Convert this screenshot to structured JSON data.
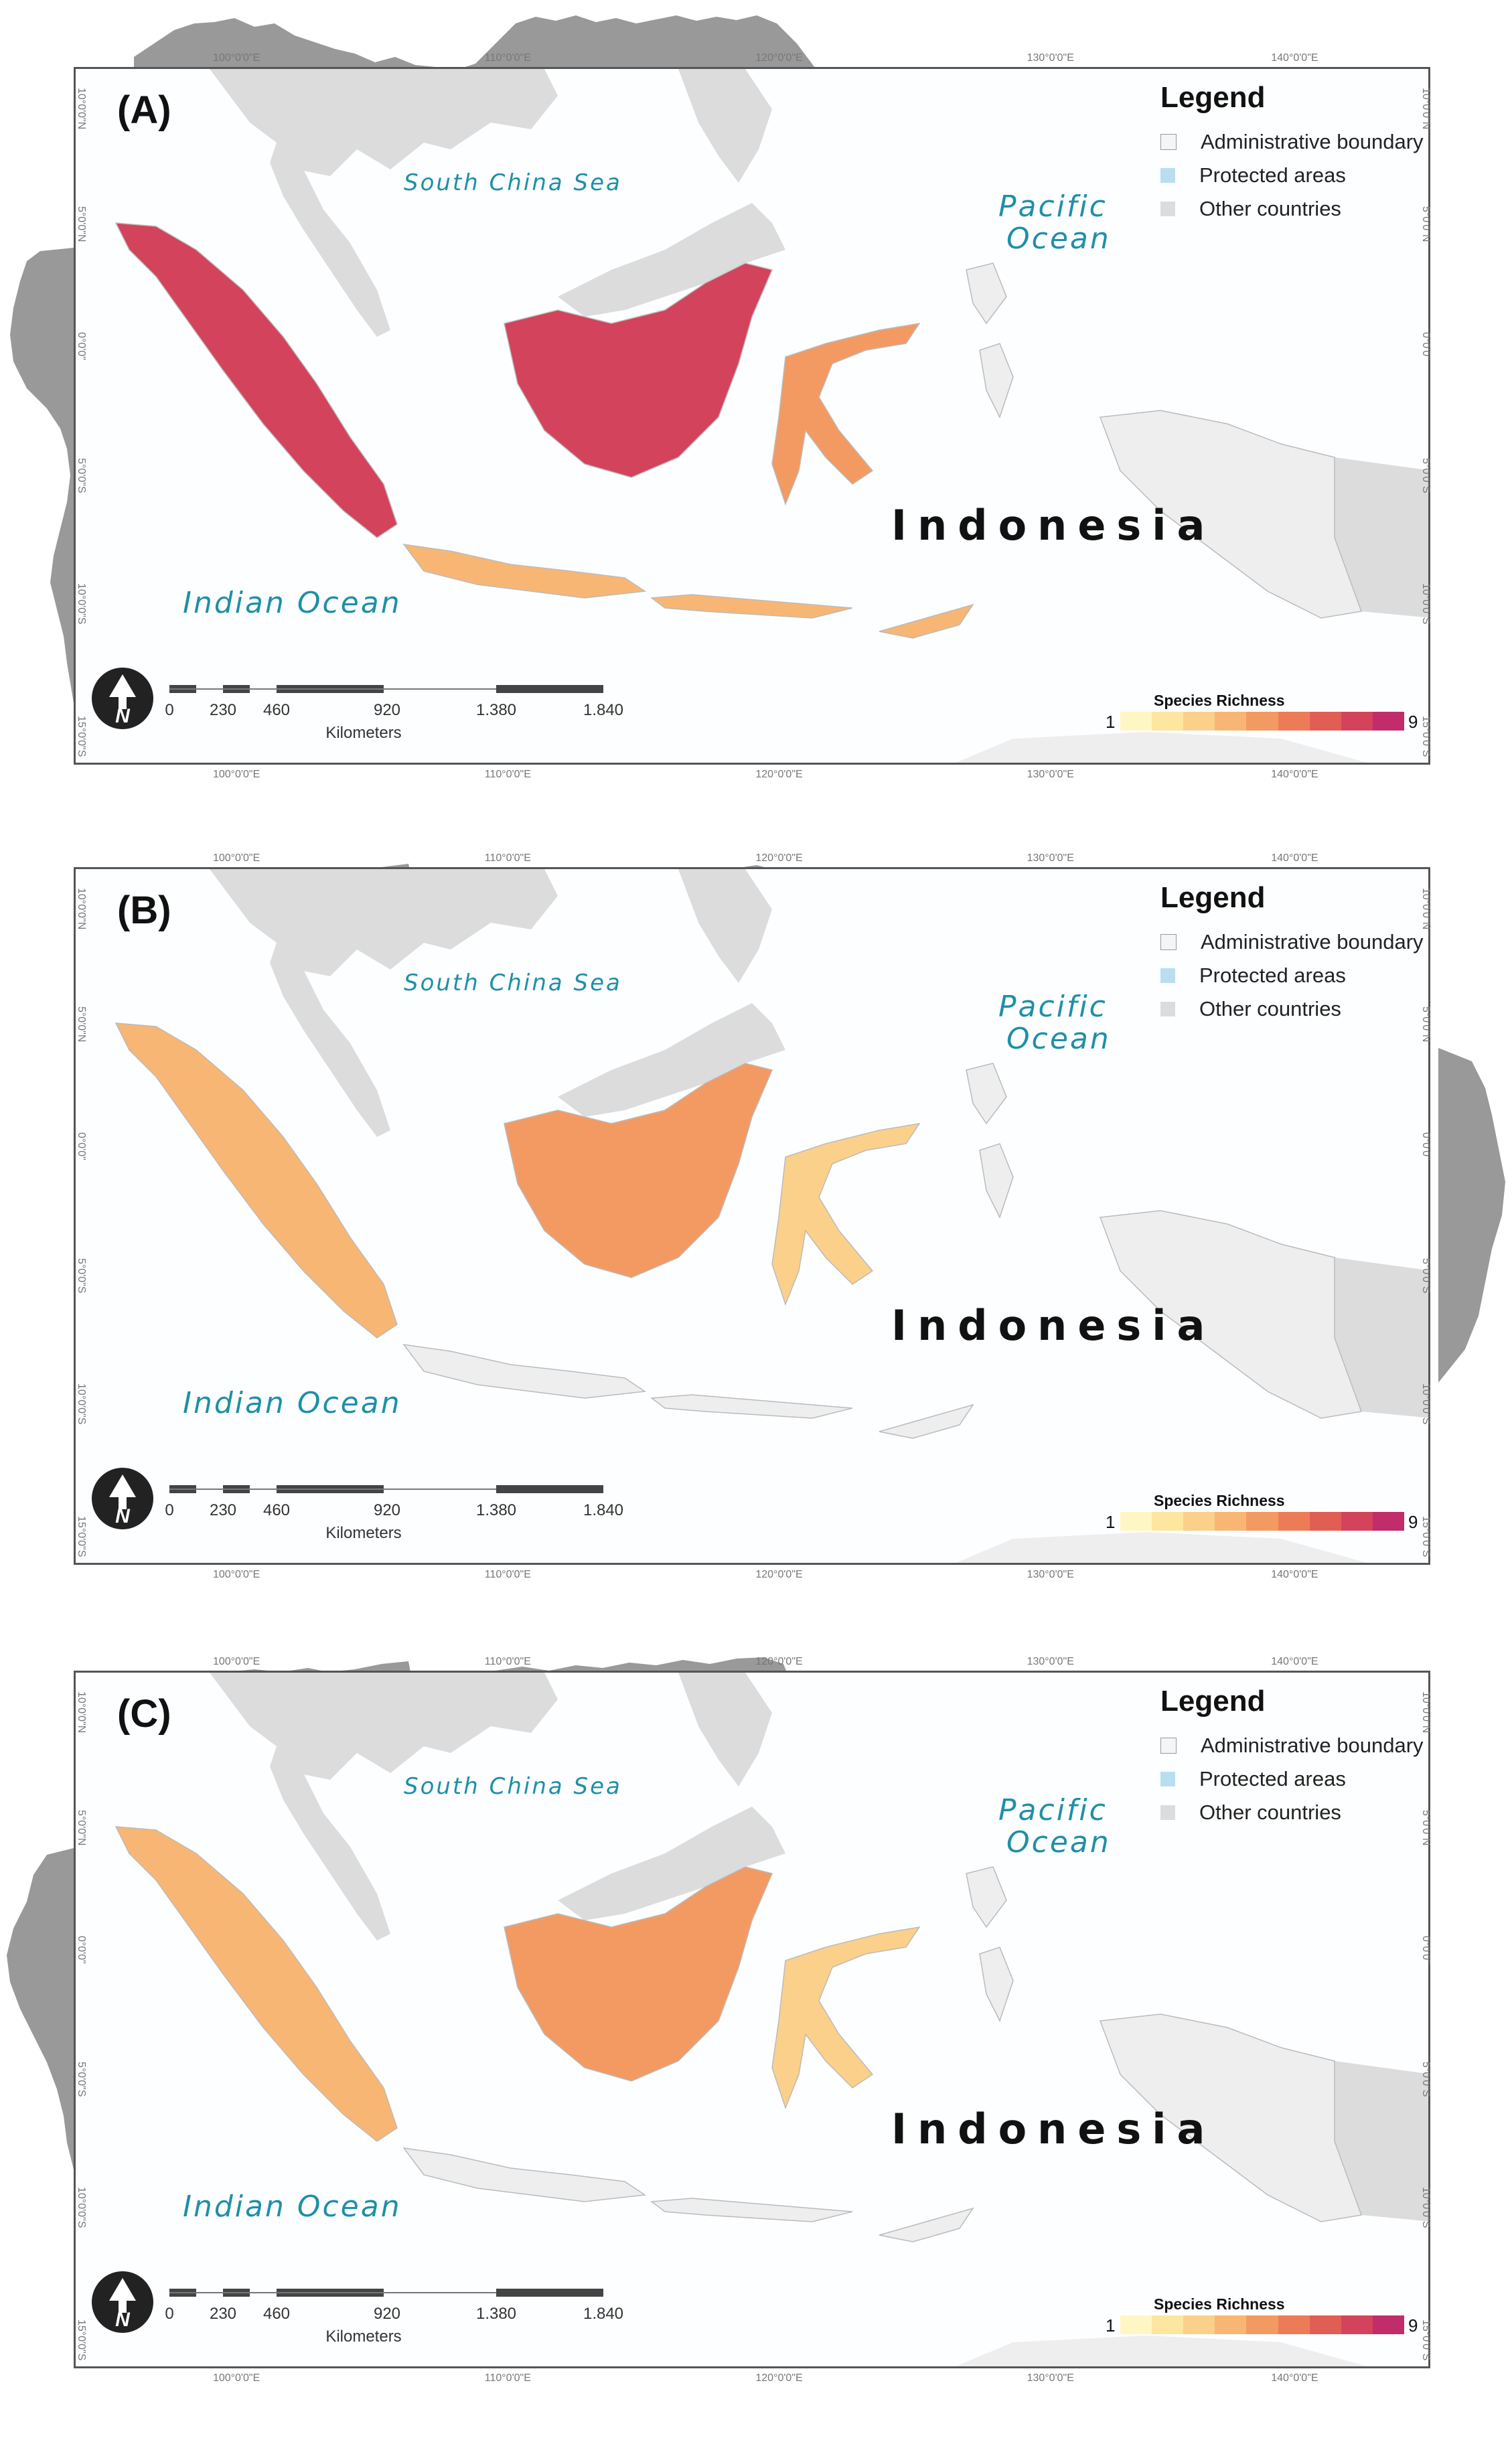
{
  "panels": [
    {
      "label": "(A)",
      "legend": {
        "title": "Legend",
        "items": [
          "Administrative boundary",
          "Protected areas",
          "Other countries"
        ]
      },
      "sea_labels": {
        "scs": "South China Sea",
        "pacific_1": "Pacific",
        "pacific_2": "Ocean",
        "indian": "Indian Ocean"
      },
      "country_label": "Indonesia",
      "scale": {
        "ticks": [
          "0",
          "230",
          "460",
          "920",
          "1.380",
          "1.840"
        ],
        "unit": "Kilometers"
      },
      "richness": {
        "title": "Species Richness",
        "min": "1",
        "max": "9"
      },
      "lon_ticks": [
        "100°0'0\"E",
        "110°0'0\"E",
        "120°0'0\"E",
        "130°0'0\"E",
        "140°0'0\"E"
      ],
      "lat_ticks": [
        "10°0'0\"N",
        "5°0'0\"N",
        "0°0'0\"",
        "5°0'0\"S",
        "10°0'0\"S",
        "15°0'0\"S"
      ],
      "richness_levels": {
        "sumatra": 7,
        "borneo": 7,
        "sulawesi": 4,
        "java": 3,
        "papua": 0
      }
    },
    {
      "label": "(B)",
      "legend": {
        "title": "Legend",
        "items": [
          "Administrative boundary",
          "Protected areas",
          "Other countries"
        ]
      },
      "sea_labels": {
        "scs": "South China Sea",
        "pacific_1": "Pacific",
        "pacific_2": "Ocean",
        "indian": "Indian Ocean"
      },
      "country_label": "Indonesia",
      "scale": {
        "ticks": [
          "0",
          "230",
          "460",
          "920",
          "1.380",
          "1.840"
        ],
        "unit": "Kilometers"
      },
      "richness": {
        "title": "Species Richness",
        "min": "1",
        "max": "9"
      },
      "lon_ticks": [
        "100°0'0\"E",
        "110°0'0\"E",
        "120°0'0\"E",
        "130°0'0\"E",
        "140°0'0\"E"
      ],
      "lat_ticks": [
        "10°0'0\"N",
        "5°0'0\"N",
        "0°0'0\"",
        "5°0'0\"S",
        "10°0'0\"S",
        "15°0'0\"S"
      ],
      "richness_levels": {
        "sumatra": 3,
        "borneo": 4,
        "sulawesi": 2,
        "java": 0,
        "papua": 0
      }
    },
    {
      "label": "(C)",
      "legend": {
        "title": "Legend",
        "items": [
          "Administrative boundary",
          "Protected areas",
          "Other countries"
        ]
      },
      "sea_labels": {
        "scs": "South China Sea",
        "pacific_1": "Pacific",
        "pacific_2": "Ocean",
        "indian": "Indian Ocean"
      },
      "country_label": "Indonesia",
      "scale": {
        "ticks": [
          "0",
          "230",
          "460",
          "920",
          "1.380",
          "1.840"
        ],
        "unit": "Kilometers"
      },
      "richness": {
        "title": "Species Richness",
        "min": "1",
        "max": "9"
      },
      "lon_ticks": [
        "100°0'0\"E",
        "110°0'0\"E",
        "120°0'0\"E",
        "130°0'0\"E",
        "140°0'0\"E"
      ],
      "lat_ticks": [
        "10°0'0\"N",
        "5°0'0\"N",
        "0°0'0\"",
        "5°0'0\"S",
        "10°0'0\"S",
        "15°0'0\"S"
      ],
      "richness_levels": {
        "sumatra": 3,
        "borneo": 4,
        "sulawesi": 2,
        "java": 0,
        "papua": 0
      }
    }
  ],
  "colors": {
    "ramp": [
      "#fff6c4",
      "#fde6a0",
      "#fbd08a",
      "#f8b674",
      "#f39a62",
      "#ec7c57",
      "#e15e55",
      "#d3435c",
      "#c02d6a"
    ],
    "land_grey": "#dcdcdc",
    "land_light": "#eeeeee",
    "hist_grey": "#999999",
    "sea_label": "#1f8fa8"
  }
}
